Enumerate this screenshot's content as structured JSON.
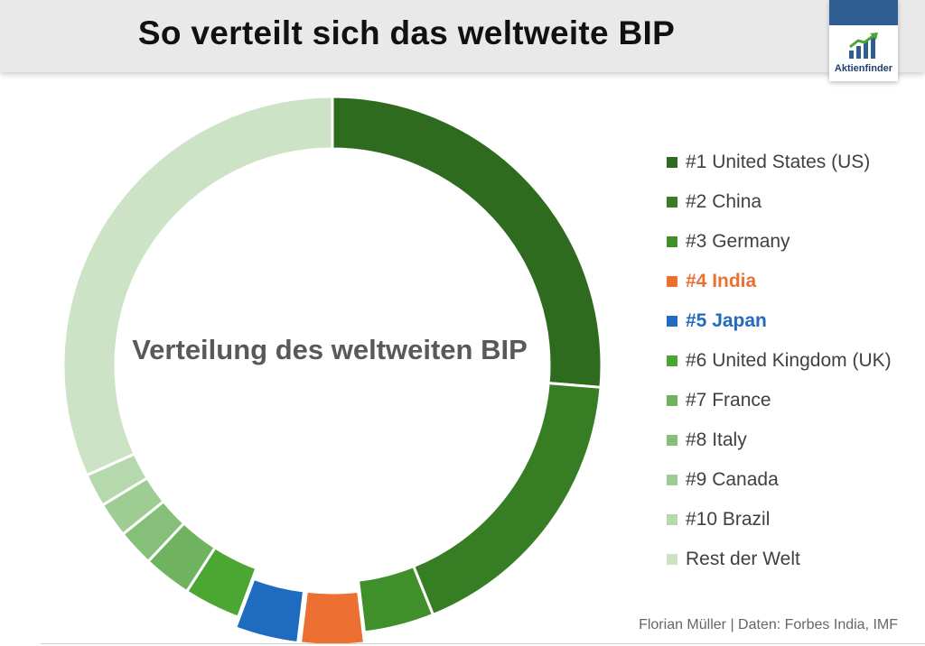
{
  "header": {
    "title": "So verteilt sich das weltweite BIP",
    "logo_text": "Aktienfinder"
  },
  "chart_data": {
    "type": "pie",
    "variant": "donut",
    "center_label": "Verteilung des weltweiten BIP",
    "legend_position": "right",
    "categories": [
      "#1 United States (US)",
      "#2 China",
      "#3 Germany",
      "#4 India",
      "#5 Japan",
      "#6 United Kingdom (UK)",
      "#7 France",
      "#8 Italy",
      "#9 Canada",
      "#10 Brazil",
      "Rest der Welt"
    ],
    "values": [
      26.3,
      17.6,
      4.2,
      3.8,
      3.8,
      3.4,
      2.9,
      2.2,
      2.1,
      2.0,
      31.7
    ],
    "colors": [
      "#2e6b1f",
      "#367d24",
      "#3f8f2a",
      "#ec7032",
      "#1f6bbf",
      "#4ba632",
      "#6fb360",
      "#86bf79",
      "#9fcc93",
      "#b6d8ad",
      "#cde3c6"
    ],
    "highlight": [
      false,
      false,
      false,
      true,
      true,
      false,
      false,
      false,
      false,
      false,
      false
    ],
    "label_colors": [
      "#404040",
      "#404040",
      "#404040",
      "#ec7032",
      "#1f6bbf",
      "#404040",
      "#404040",
      "#404040",
      "#404040",
      "#404040",
      "#404040"
    ]
  },
  "footer": {
    "source": "Florian Müller | Daten: Forbes India, IMF"
  }
}
